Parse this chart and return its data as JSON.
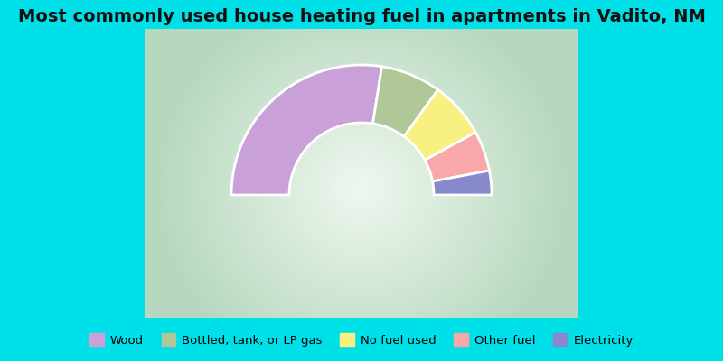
{
  "title": "Most commonly used house heating fuel in apartments in Vadito, NM",
  "segments": [
    {
      "label": "Wood",
      "value": 55,
      "color": "#c9a0d8"
    },
    {
      "label": "Bottled, tank, or LP gas",
      "value": 15,
      "color": "#b0c898"
    },
    {
      "label": "No fuel used",
      "value": 14,
      "color": "#f8f080"
    },
    {
      "label": "Other fuel",
      "value": 10,
      "color": "#f8a8a8"
    },
    {
      "label": "Electricity",
      "value": 6,
      "color": "#8888cc"
    }
  ],
  "bg_top": "#00e0e8",
  "title_fontsize": 14,
  "legend_fontsize": 9.5,
  "outer_r": 0.9,
  "inner_r": 0.5
}
